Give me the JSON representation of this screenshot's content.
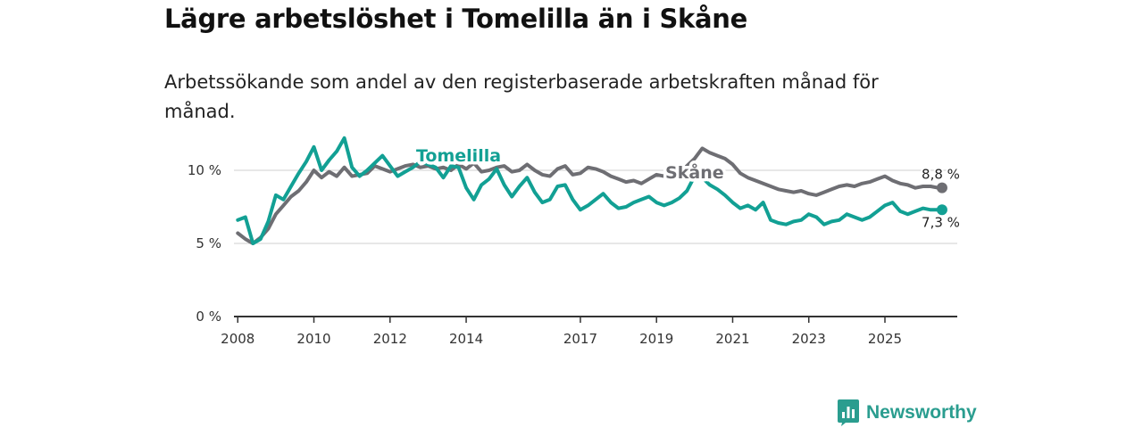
{
  "title": "Lägre arbetslöshet i Tomelilla än i Skåne",
  "subtitle": "Arbetssökande som andel av den registerbaserade arbetskraften månad för månad.",
  "brand": {
    "name": "Newsworthy",
    "color": "#2a9d8f",
    "icon": "bar-chart-icon"
  },
  "chart_data": {
    "type": "line",
    "title": "Lägre arbetslöshet i Tomelilla än i Skåne",
    "xlabel": "",
    "ylabel": "",
    "ylim": [
      0,
      12.5
    ],
    "xlim": [
      2007.9,
      2026.9
    ],
    "y_ticks": [
      0,
      5,
      10
    ],
    "y_tick_labels": [
      "0 %",
      "5 %",
      "10 %"
    ],
    "x_ticks": [
      2008,
      2010,
      2012,
      2014,
      2017,
      2019,
      2021,
      2023,
      2025
    ],
    "x_tick_labels": [
      "2008",
      "2010",
      "2012",
      "2014",
      "2017",
      "2019",
      "2021",
      "2023",
      "2025"
    ],
    "grid": true,
    "series": [
      {
        "name": "Skåne",
        "label": "Skåne",
        "color": "#6e6e73",
        "end_label": "8,8 %",
        "x": [
          2008.0,
          2008.2,
          2008.4,
          2008.6,
          2008.8,
          2009.0,
          2009.2,
          2009.4,
          2009.6,
          2009.8,
          2010.0,
          2010.2,
          2010.4,
          2010.6,
          2010.8,
          2011.0,
          2011.2,
          2011.4,
          2011.6,
          2011.8,
          2012.0,
          2012.2,
          2012.4,
          2012.6,
          2012.8,
          2013.0,
          2013.2,
          2013.4,
          2013.6,
          2013.8,
          2014.0,
          2014.2,
          2014.4,
          2014.6,
          2014.8,
          2015.0,
          2015.2,
          2015.4,
          2015.6,
          2015.8,
          2016.0,
          2016.2,
          2016.4,
          2016.6,
          2016.8,
          2017.0,
          2017.2,
          2017.4,
          2017.6,
          2017.8,
          2018.0,
          2018.2,
          2018.4,
          2018.6,
          2018.8,
          2019.0,
          2019.2,
          2019.4,
          2019.6,
          2019.8,
          2020.0,
          2020.2,
          2020.4,
          2020.6,
          2020.8,
          2021.0,
          2021.2,
          2021.4,
          2021.6,
          2021.8,
          2022.0,
          2022.2,
          2022.4,
          2022.6,
          2022.8,
          2023.0,
          2023.2,
          2023.4,
          2023.6,
          2023.8,
          2024.0,
          2024.2,
          2024.4,
          2024.6,
          2024.8,
          2025.0,
          2025.2,
          2025.4,
          2025.6,
          2025.8,
          2026.0,
          2026.2,
          2026.4,
          2026.5
        ],
        "y": [
          5.7,
          5.3,
          5.0,
          5.4,
          6.0,
          7.0,
          7.6,
          8.2,
          8.6,
          9.2,
          10.0,
          9.5,
          9.9,
          9.6,
          10.2,
          9.6,
          9.7,
          9.8,
          10.3,
          10.1,
          9.9,
          10.1,
          10.3,
          10.4,
          10.2,
          10.3,
          10.1,
          10.2,
          10.0,
          10.4,
          10.1,
          10.5,
          9.9,
          10.0,
          10.2,
          10.3,
          9.9,
          10.0,
          10.4,
          10.0,
          9.7,
          9.6,
          10.1,
          10.3,
          9.7,
          9.8,
          10.2,
          10.1,
          9.9,
          9.6,
          9.4,
          9.2,
          9.3,
          9.1,
          9.4,
          9.7,
          9.6,
          9.4,
          9.9,
          10.3,
          10.8,
          11.5,
          11.2,
          11.0,
          10.8,
          10.4,
          9.8,
          9.5,
          9.3,
          9.1,
          8.9,
          8.7,
          8.6,
          8.5,
          8.6,
          8.4,
          8.3,
          8.5,
          8.7,
          8.9,
          9.0,
          8.9,
          9.1,
          9.2,
          9.4,
          9.6,
          9.3,
          9.1,
          9.0,
          8.8,
          8.9,
          8.9,
          8.8,
          8.8
        ]
      },
      {
        "name": "Tomelilla",
        "label": "Tomelilla",
        "color": "#12a094",
        "end_label": "7,3 %",
        "x": [
          2008.0,
          2008.2,
          2008.4,
          2008.6,
          2008.8,
          2009.0,
          2009.2,
          2009.4,
          2009.6,
          2009.8,
          2010.0,
          2010.2,
          2010.4,
          2010.6,
          2010.8,
          2011.0,
          2011.2,
          2011.4,
          2011.6,
          2011.8,
          2012.0,
          2012.2,
          2012.4,
          2012.6,
          2012.8,
          2013.0,
          2013.2,
          2013.4,
          2013.6,
          2013.8,
          2014.0,
          2014.2,
          2014.4,
          2014.6,
          2014.8,
          2015.0,
          2015.2,
          2015.4,
          2015.6,
          2015.8,
          2016.0,
          2016.2,
          2016.4,
          2016.6,
          2016.8,
          2017.0,
          2017.2,
          2017.4,
          2017.6,
          2017.8,
          2018.0,
          2018.2,
          2018.4,
          2018.6,
          2018.8,
          2019.0,
          2019.2,
          2019.4,
          2019.6,
          2019.8,
          2020.0,
          2020.2,
          2020.4,
          2020.6,
          2020.8,
          2021.0,
          2021.2,
          2021.4,
          2021.6,
          2021.8,
          2022.0,
          2022.2,
          2022.4,
          2022.6,
          2022.8,
          2023.0,
          2023.2,
          2023.4,
          2023.6,
          2023.8,
          2024.0,
          2024.2,
          2024.4,
          2024.6,
          2024.8,
          2025.0,
          2025.2,
          2025.4,
          2025.6,
          2025.8,
          2026.0,
          2026.2,
          2026.4,
          2026.5
        ],
        "y": [
          6.6,
          6.8,
          5.0,
          5.3,
          6.5,
          8.3,
          8.0,
          8.9,
          9.8,
          10.6,
          11.6,
          10.0,
          10.7,
          11.3,
          12.2,
          10.2,
          9.6,
          10.0,
          10.5,
          11.0,
          10.3,
          9.6,
          9.9,
          10.2,
          10.6,
          10.4,
          10.2,
          9.5,
          10.3,
          10.2,
          8.8,
          8.0,
          9.0,
          9.4,
          10.1,
          9.0,
          8.2,
          8.9,
          9.5,
          8.5,
          7.8,
          8.0,
          8.9,
          9.0,
          8.0,
          7.3,
          7.6,
          8.0,
          8.4,
          7.8,
          7.4,
          7.5,
          7.8,
          8.0,
          8.2,
          7.8,
          7.6,
          7.8,
          8.1,
          8.6,
          9.6,
          9.5,
          9.0,
          8.7,
          8.3,
          7.8,
          7.4,
          7.6,
          7.3,
          7.8,
          6.6,
          6.4,
          6.3,
          6.5,
          6.6,
          7.0,
          6.8,
          6.3,
          6.5,
          6.6,
          7.0,
          6.8,
          6.6,
          6.8,
          7.2,
          7.6,
          7.8,
          7.2,
          7.0,
          7.2,
          7.4,
          7.3,
          7.3,
          7.3
        ]
      }
    ]
  }
}
